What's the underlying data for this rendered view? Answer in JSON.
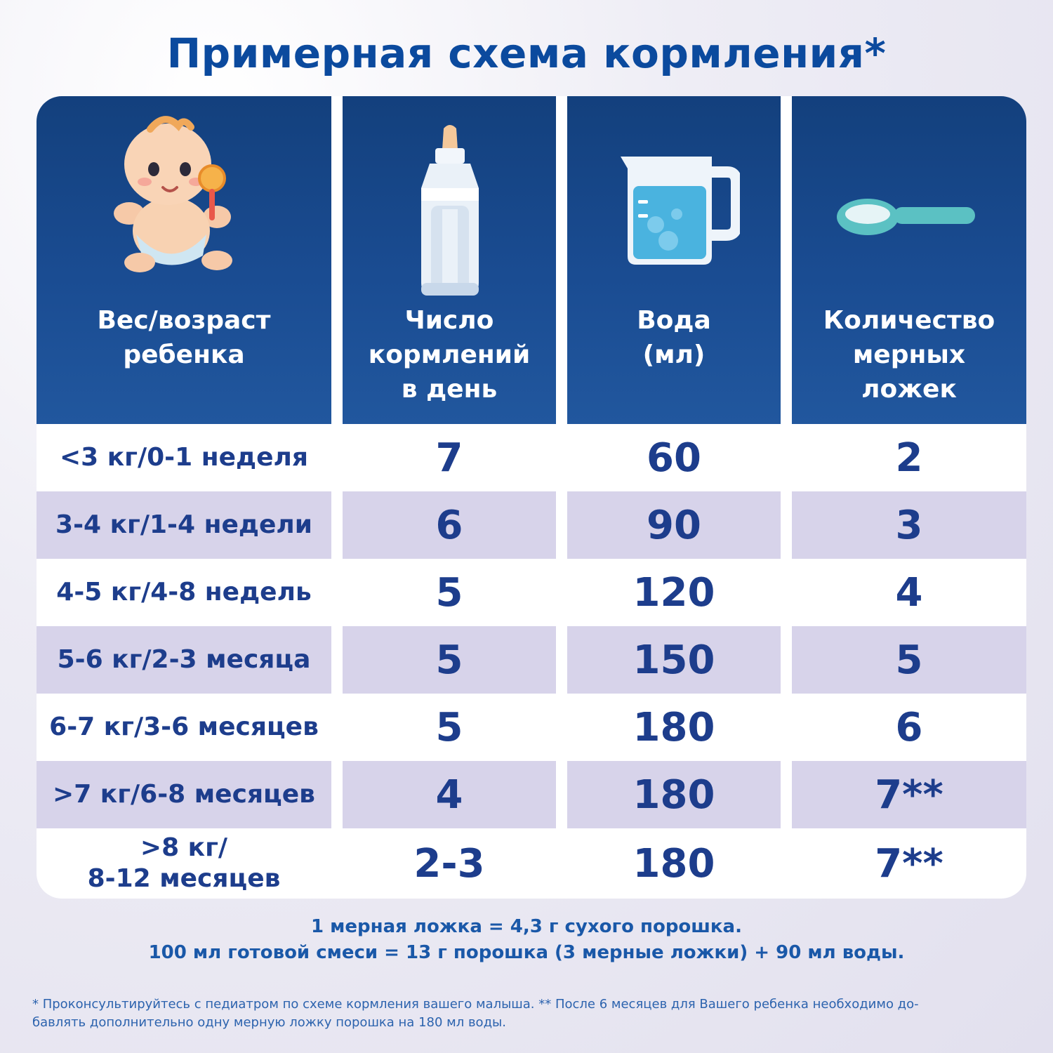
{
  "title": "Примерная схема кормления*",
  "headers": [
    {
      "label": "Вес/возраст\nребенка",
      "icon": "baby-icon"
    },
    {
      "label": "Число\nкормлений\nв день",
      "icon": "bottle-icon"
    },
    {
      "label": "Вода\n(мл)",
      "icon": "measuring-jug-icon"
    },
    {
      "label": "Количество\nмерных\nложек",
      "icon": "spoon-icon"
    }
  ],
  "rows": [
    {
      "age": "<3 кг/0-1 неделя",
      "feedings": "7",
      "water": "60",
      "spoons": "2"
    },
    {
      "age": "3-4 кг/1-4 недели",
      "feedings": "6",
      "water": "90",
      "spoons": "3"
    },
    {
      "age": "4-5 кг/4-8 недель",
      "feedings": "5",
      "water": "120",
      "spoons": "4"
    },
    {
      "age": "5-6 кг/2-3 месяца",
      "feedings": "5",
      "water": "150",
      "spoons": "5"
    },
    {
      "age": "6-7 кг/3-6 месяцев",
      "feedings": "5",
      "water": "180",
      "spoons": "6"
    },
    {
      "age": ">7 кг/6-8 месяцев",
      "feedings": "4",
      "water": "180",
      "spoons": "7**"
    },
    {
      "age": ">8 кг/\n8-12 месяцев",
      "feedings": "2-3",
      "water": "180",
      "spoons": "7**"
    }
  ],
  "notes": [
    "1 мерная ложка = 4,3 г сухого порошка.",
    "100 мл готовой смеси = 13 г порошка (3 мерные ложки) + 90 мл воды."
  ],
  "footnote": [
    "* Проконсультируйтесь с педиатром по схеме кормления вашего малыша. ** После 6 месяцев для Вашего ребенка необходимо до-",
    "бавлять дополнительно одну мерную ложку порошка на 180 мл воды."
  ]
}
